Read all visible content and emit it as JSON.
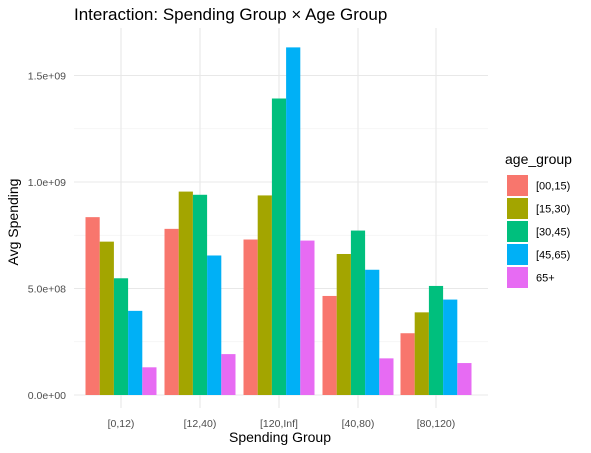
{
  "chart_data": {
    "type": "bar",
    "title": "Interaction: Spending Group × Age Group",
    "xlabel": "Spending Group",
    "ylabel": "Avg Spending",
    "categories": [
      "[0,12)",
      "[12,40)",
      "[120,Inf]",
      "[40,80)",
      "[80,120)"
    ],
    "ylim": [
      0,
      1650000000
    ],
    "yticks": [
      0,
      500000000,
      1000000000,
      1500000000
    ],
    "ytick_labels": [
      "0.0e+00",
      "5.0e+08",
      "1.0e+09",
      "1.5e+09"
    ],
    "grid": true,
    "legend": {
      "title": "age_group",
      "placement": "right"
    },
    "series": [
      {
        "name": "[00,15)",
        "color": "#F8766D",
        "values": [
          835000000,
          780000000,
          730000000,
          465000000,
          290000000
        ]
      },
      {
        "name": "[15,30)",
        "color": "#A3A500",
        "values": [
          720000000,
          955000000,
          937000000,
          662000000,
          388000000
        ]
      },
      {
        "name": "[30,45)",
        "color": "#00BF7D",
        "values": [
          548000000,
          940000000,
          1392000000,
          772000000,
          512000000
        ]
      },
      {
        "name": "[45,65)",
        "color": "#00B0F6",
        "values": [
          395000000,
          655000000,
          1632000000,
          588000000,
          448000000
        ]
      },
      {
        "name": "65+",
        "color": "#E76BF3",
        "values": [
          130000000,
          192000000,
          725000000,
          172000000,
          150000000
        ]
      }
    ]
  }
}
